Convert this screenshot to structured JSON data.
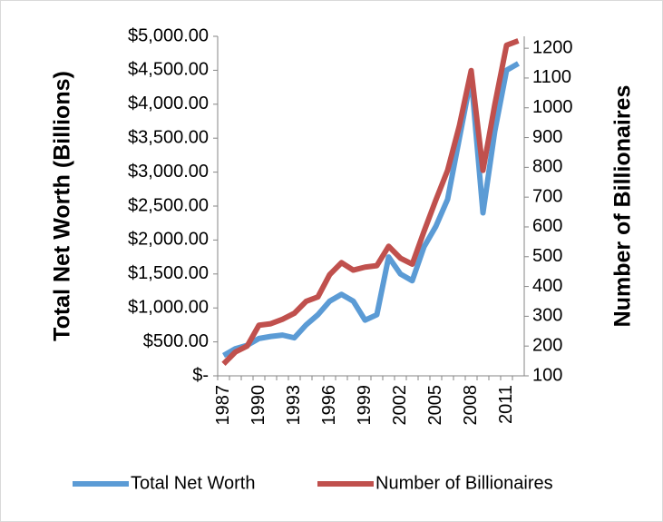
{
  "chart_data": {
    "type": "line",
    "categories": [
      "1987",
      null,
      null,
      "1990",
      null,
      null,
      "1993",
      null,
      null,
      "1996",
      null,
      null,
      "1999",
      null,
      null,
      "2002",
      null,
      null,
      "2005",
      null,
      null,
      "2008",
      null,
      null,
      "2011",
      null
    ],
    "y_label": "Total Net Worth (Billions)",
    "y2_label": "Number of Billionaires",
    "ylim": [
      0,
      5000
    ],
    "yticks": [
      {
        "value": 0,
        "label": "$-"
      },
      {
        "value": 500,
        "label": "$500.00"
      },
      {
        "value": 1000,
        "label": "$1,000.00"
      },
      {
        "value": 1500,
        "label": "$1,500.00"
      },
      {
        "value": 2000,
        "label": "$2,000.00"
      },
      {
        "value": 2500,
        "label": "$2,500.00"
      },
      {
        "value": 3000,
        "label": "$3,000.00"
      },
      {
        "value": 3500,
        "label": "$3,500.00"
      },
      {
        "value": 4000,
        "label": "$4,000.00"
      },
      {
        "value": 4500,
        "label": "$4,500.00"
      },
      {
        "value": 5000,
        "label": "$5,000.00"
      }
    ],
    "y2lim": [
      100,
      1240
    ],
    "y2ticks": [
      100,
      200,
      300,
      400,
      500,
      600,
      700,
      800,
      900,
      1000,
      1100,
      1200
    ],
    "legend": "bottom",
    "series": [
      {
        "name": "Total Net Worth",
        "color": "#5b9bd5",
        "values": [
          300,
          400,
          450,
          550,
          580,
          600,
          560,
          750,
          900,
          1100,
          1200,
          1100,
          820,
          900,
          1750,
          1500,
          1400,
          1900,
          2200,
          2600,
          3500,
          4400,
          2400,
          3600,
          4500,
          4600
        ]
      },
      {
        "name": "Number of Billionaires",
        "color": "#c0504d",
        "axis": "y2",
        "values": [
          140,
          180,
          200,
          270,
          275,
          290,
          310,
          350,
          365,
          440,
          480,
          455,
          465,
          470,
          535,
          495,
          475,
          585,
          690,
          790,
          940,
          1125,
          790,
          1010,
          1210,
          1225
        ]
      }
    ]
  }
}
